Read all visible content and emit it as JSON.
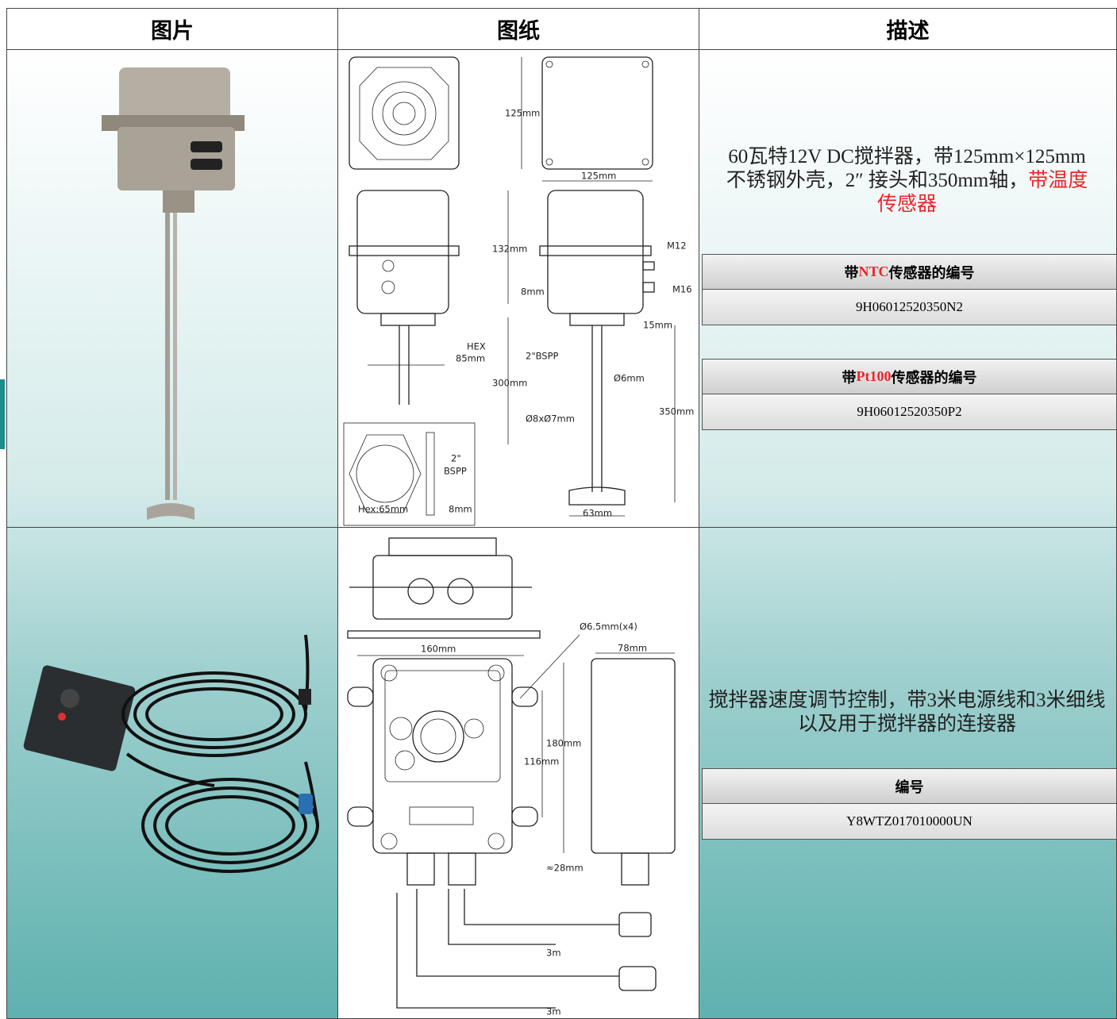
{
  "header": {
    "columns": [
      "图片",
      "图纸",
      "描述"
    ]
  },
  "rows": [
    {
      "drawing_labels": [
        "125mm",
        "125mm",
        "132mm",
        "M12",
        "M16",
        "8mm",
        "15mm",
        "HEX",
        "85mm",
        "2\"BSPP",
        "300mm",
        "Ø6mm",
        "Ø8xØ7mm",
        "350mm",
        "63mm",
        "2\"",
        "BSPP",
        "Hex:65mm",
        "8mm"
      ],
      "description": {
        "text": "60瓦特12V DC搅拌器，带125mm×125mm不锈钢外壳，2″ 接头和350mm轴，",
        "highlight": "带温度传感器"
      },
      "part_numbers": [
        {
          "label": {
            "before": "带",
            "highlight": "NTC",
            "after": "传感器的编号"
          },
          "code": "9H06012520350N2"
        },
        {
          "label": {
            "before": "带",
            "highlight": "Pt100",
            "after": "传感器的编号"
          },
          "code": "9H06012520350P2"
        }
      ]
    },
    {
      "drawing_labels": [
        "Ø6.5mm(x4)",
        "160mm",
        "78mm",
        "180mm",
        "116mm",
        "≈28mm",
        "3m",
        "3m"
      ],
      "description": {
        "text": "搅拌器速度调节控制，带3米电源线和3米细线以及用于搅拌器的连接器"
      },
      "part_numbers": [
        {
          "label": {
            "before": "编号"
          },
          "code": "Y8WTZ017010000UN"
        }
      ]
    }
  ]
}
